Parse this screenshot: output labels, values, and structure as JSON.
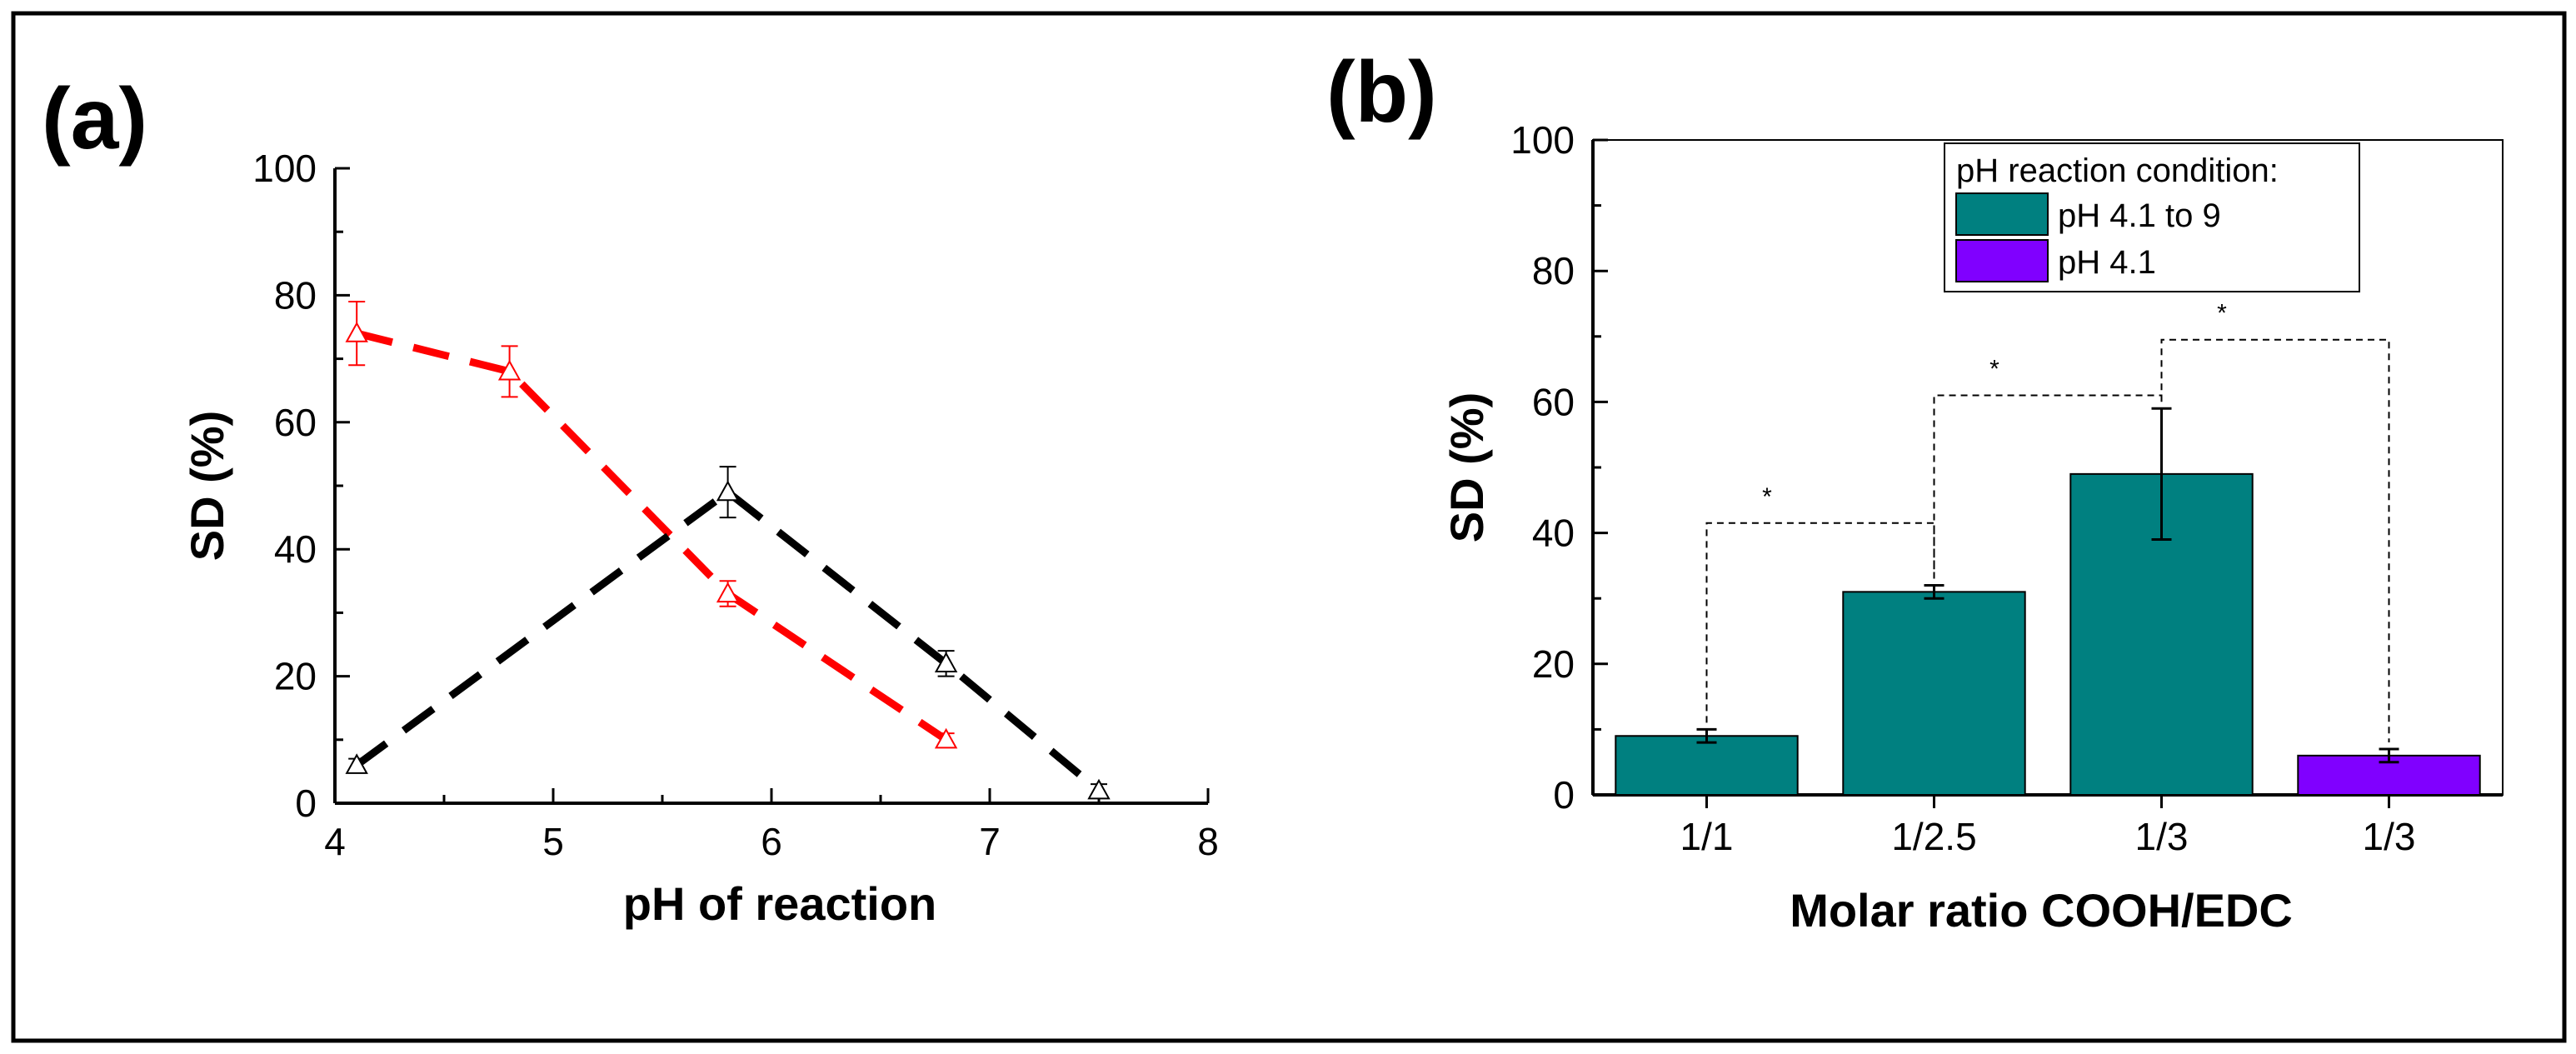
{
  "chart_data": [
    {
      "panel_label": "(a)",
      "type": "line",
      "xlabel": "pH of  reaction",
      "ylabel": "SD (%)",
      "xlim": [
        4,
        8
      ],
      "ylim": [
        0,
        100
      ],
      "xticks": [
        "4",
        "5",
        "6",
        "7",
        "8"
      ],
      "yticks": [
        "0",
        "20",
        "40",
        "60",
        "80",
        "100"
      ],
      "series": [
        {
          "name": "red series",
          "color": "#ff0000",
          "x": [
            4.1,
            4.8,
            5.8,
            6.8
          ],
          "y": [
            74,
            68,
            33,
            10
          ],
          "err": [
            5,
            4,
            2,
            1
          ]
        },
        {
          "name": "black series",
          "color": "#000000",
          "x": [
            4.1,
            5.8,
            6.8,
            7.5
          ],
          "y": [
            6,
            49,
            22,
            2
          ],
          "err": [
            1,
            4,
            2,
            1
          ]
        }
      ]
    },
    {
      "panel_label": "(b)",
      "type": "bar",
      "xlabel": "Molar ratio COOH/EDC",
      "ylabel": "SD (%)",
      "ylim": [
        0,
        100
      ],
      "yticks": [
        "0",
        "20",
        "40",
        "60",
        "80",
        "100"
      ],
      "categories": [
        "1/1",
        "1/2.5",
        "1/3",
        "1/3"
      ],
      "values": [
        9,
        31,
        49,
        6
      ],
      "errors": [
        1,
        1,
        10,
        1
      ],
      "bar_groups": [
        "pH 4.1 to 9",
        "pH 4.1 to 9",
        "pH 4.1 to 9",
        "pH 4.1"
      ],
      "legend": {
        "title": "pH reaction condition:",
        "entries": [
          {
            "label": "pH 4.1 to 9",
            "color": "#008080"
          },
          {
            "label": "pH 4.1",
            "color": "#8000ff"
          }
        ]
      },
      "significance": [
        {
          "from": 0,
          "to": 1,
          "level": 41.5,
          "mark": "*"
        },
        {
          "from": 1,
          "to": 2,
          "level": 61,
          "mark": "*"
        },
        {
          "from": 2,
          "to": 3,
          "level": 69.5,
          "mark": "*"
        }
      ]
    }
  ]
}
